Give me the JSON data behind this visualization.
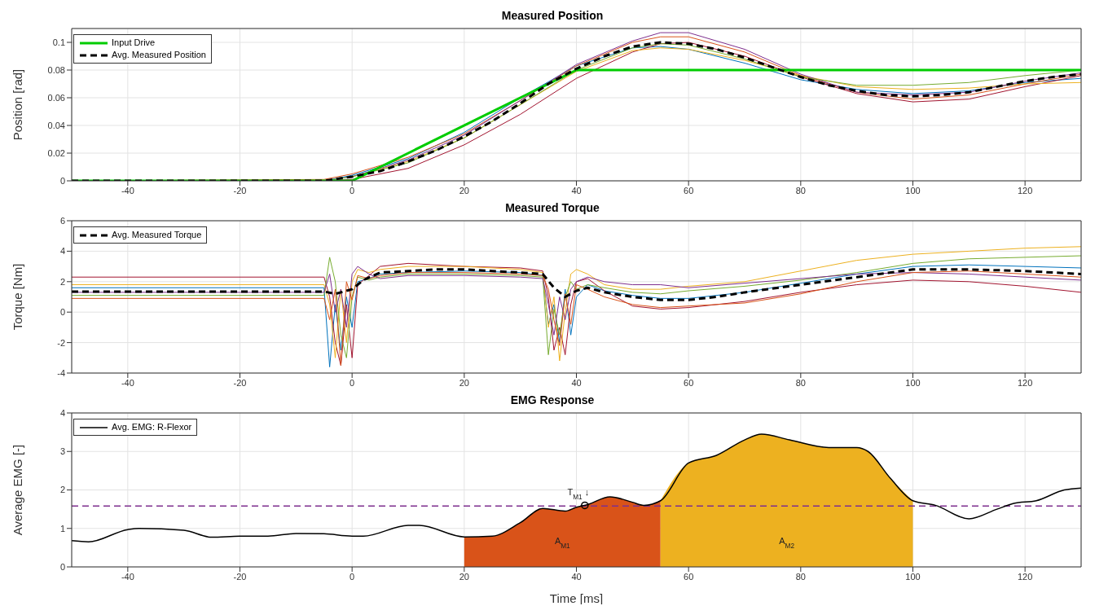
{
  "chart_data": [
    {
      "type": "line",
      "title": "Measured Position",
      "ylabel": "Position [rad]",
      "xlim": [
        -50,
        130
      ],
      "xticks": [
        -40,
        -20,
        0,
        20,
        40,
        60,
        80,
        100,
        120
      ],
      "ylim": [
        0,
        0.11
      ],
      "yticks": [
        0,
        0.02,
        0.04,
        0.06,
        0.08,
        0.1
      ],
      "grid": true,
      "legend": "top left",
      "line_style": "solid",
      "series": [
        {
          "color": "#0072bd",
          "x": [
            -50,
            -5,
            0,
            10,
            20,
            30,
            40,
            50,
            55,
            60,
            70,
            80,
            90,
            100,
            110,
            120,
            130
          ],
          "values": [
            0,
            0,
            0.004,
            0.016,
            0.035,
            0.06,
            0.083,
            0.096,
            0.097,
            0.095,
            0.085,
            0.073,
            0.066,
            0.063,
            0.065,
            0.071,
            0.074
          ]
        },
        {
          "color": "#a2142f",
          "x": [
            -50,
            -5,
            0,
            10,
            20,
            30,
            40,
            50,
            55,
            60,
            70,
            80,
            90,
            100,
            110,
            120,
            130
          ],
          "values": [
            0,
            0,
            0.001,
            0.009,
            0.026,
            0.048,
            0.074,
            0.093,
            0.099,
            0.1,
            0.09,
            0.075,
            0.063,
            0.057,
            0.059,
            0.068,
            0.076
          ]
        },
        {
          "color": "#d95319",
          "x": [
            -50,
            -5,
            0,
            10,
            20,
            30,
            40,
            50,
            55,
            60,
            70,
            80,
            90,
            100,
            110,
            120,
            130
          ],
          "values": [
            0,
            0.001,
            0.005,
            0.017,
            0.034,
            0.058,
            0.083,
            0.1,
            0.104,
            0.104,
            0.093,
            0.076,
            0.064,
            0.059,
            0.062,
            0.07,
            0.077
          ]
        },
        {
          "color": "#edb120",
          "x": [
            0,
            10,
            20,
            30,
            40,
            50,
            55,
            60,
            70,
            80,
            90,
            100,
            110,
            120,
            130
          ],
          "values": [
            0.003,
            0.014,
            0.031,
            0.055,
            0.079,
            0.094,
            0.096,
            0.095,
            0.087,
            0.076,
            0.068,
            0.066,
            0.067,
            0.07,
            0.071
          ]
        },
        {
          "color": "#7e2f8e",
          "x": [
            -50,
            -5,
            0,
            10,
            20,
            30,
            40,
            50,
            55,
            60,
            70,
            80,
            90,
            100,
            110,
            120,
            130
          ],
          "values": [
            0,
            0,
            0.003,
            0.015,
            0.033,
            0.058,
            0.084,
            0.101,
            0.107,
            0.107,
            0.095,
            0.077,
            0.064,
            0.062,
            0.064,
            0.072,
            0.078
          ]
        },
        {
          "color": "#77ac30",
          "x": [
            -50,
            -5,
            0,
            10,
            20,
            30,
            40,
            50,
            55,
            60,
            70,
            80,
            90,
            100,
            110,
            120,
            130
          ],
          "values": [
            0,
            0,
            0.003,
            0.013,
            0.031,
            0.055,
            0.08,
            0.096,
            0.099,
            0.098,
            0.088,
            0.075,
            0.069,
            0.069,
            0.071,
            0.076,
            0.08
          ]
        },
        {
          "name": "Input Drive",
          "color": "#00cc00",
          "x": [
            -50,
            0,
            40,
            130
          ],
          "values": [
            0,
            0,
            0.08,
            0.08
          ]
        },
        {
          "name": "Avg. Measured Position",
          "color": "#000000",
          "line_style": "dashed",
          "x": [
            -50,
            -5,
            0,
            5,
            10,
            15,
            20,
            25,
            30,
            35,
            40,
            45,
            50,
            55,
            60,
            65,
            70,
            75,
            80,
            85,
            90,
            95,
            100,
            105,
            110,
            115,
            120,
            125,
            130
          ],
          "values": [
            0,
            0,
            0.003,
            0.007,
            0.014,
            0.022,
            0.032,
            0.043,
            0.056,
            0.07,
            0.081,
            0.09,
            0.097,
            0.1,
            0.099,
            0.095,
            0.089,
            0.082,
            0.075,
            0.069,
            0.065,
            0.062,
            0.061,
            0.062,
            0.064,
            0.068,
            0.072,
            0.075,
            0.077
          ]
        }
      ]
    },
    {
      "type": "line",
      "title": "Measured Torque",
      "ylabel": "Torque [Nm]",
      "xlim": [
        -50,
        130
      ],
      "xticks": [
        -40,
        -20,
        0,
        20,
        40,
        60,
        80,
        100,
        120
      ],
      "ylim": [
        -4,
        6
      ],
      "yticks": [
        -4,
        -2,
        0,
        2,
        4,
        6
      ],
      "grid": true,
      "legend": "top left",
      "line_style": "solid",
      "series": [
        {
          "color": "#0072bd",
          "x": [
            -50,
            -5,
            -4,
            -3,
            -2,
            -1,
            0,
            1,
            3,
            5,
            10,
            20,
            30,
            34,
            35,
            36,
            37,
            38,
            39,
            40,
            42,
            45,
            50,
            55,
            60,
            70,
            80,
            90,
            100,
            110,
            120,
            130
          ],
          "values": [
            1.6,
            1.6,
            -3.6,
            0.5,
            -2.5,
            1.0,
            -1.0,
            2.0,
            2.2,
            2.5,
            2.6,
            2.7,
            2.6,
            2.4,
            -0.8,
            0.5,
            -2.0,
            1.5,
            -1.5,
            1.0,
            1.8,
            1.4,
            1.1,
            0.9,
            0.9,
            1.3,
            1.9,
            2.5,
            3.0,
            3.1,
            3.0,
            2.9
          ]
        },
        {
          "color": "#a2142f",
          "x": [
            -50,
            -5,
            -4,
            -3,
            -2,
            -1,
            0,
            1,
            3,
            5,
            10,
            20,
            30,
            34,
            35,
            36,
            37,
            38,
            39,
            40,
            42,
            45,
            50,
            55,
            60,
            70,
            80,
            90,
            100,
            110,
            120,
            130
          ],
          "values": [
            2.3,
            2.3,
            1.0,
            -2.0,
            -3.5,
            0.5,
            -3.0,
            1.8,
            2.4,
            3.0,
            3.2,
            3.0,
            2.9,
            2.7,
            1.0,
            -2.5,
            -1.0,
            -2.8,
            0.5,
            2.0,
            2.2,
            1.4,
            0.4,
            0.2,
            0.3,
            0.7,
            1.3,
            1.8,
            2.1,
            2.0,
            1.7,
            1.3
          ]
        },
        {
          "color": "#edb120",
          "x": [
            -50,
            -5,
            -4,
            -3,
            -2,
            -1,
            0,
            1,
            3,
            5,
            10,
            20,
            30,
            34,
            35,
            36,
            37,
            38,
            39,
            40,
            42,
            45,
            50,
            55,
            60,
            70,
            80,
            90,
            100,
            110,
            120,
            130
          ],
          "values": [
            1.8,
            1.8,
            0.5,
            -3.0,
            1.5,
            -2.0,
            2.0,
            2.8,
            2.6,
            2.8,
            3.0,
            3.0,
            2.8,
            2.6,
            -1.0,
            1.0,
            -3.2,
            0.0,
            2.5,
            2.8,
            2.5,
            1.8,
            1.5,
            1.5,
            1.7,
            2.0,
            2.7,
            3.4,
            3.8,
            4.0,
            4.2,
            4.3
          ]
        },
        {
          "color": "#77ac30",
          "x": [
            -50,
            -5,
            -4,
            -3,
            -2,
            -1,
            0,
            1,
            3,
            5,
            10,
            20,
            30,
            34,
            35,
            36,
            37,
            38,
            39,
            40,
            42,
            45,
            50,
            55,
            60,
            70,
            80,
            90,
            100,
            110,
            120,
            130
          ],
          "values": [
            1.1,
            1.1,
            3.6,
            2.0,
            -1.5,
            -3.0,
            1.0,
            2.3,
            2.1,
            2.3,
            2.5,
            2.5,
            2.4,
            2.3,
            -2.8,
            0.2,
            -1.5,
            1.0,
            2.0,
            1.5,
            1.8,
            1.6,
            1.3,
            1.2,
            1.4,
            1.7,
            2.1,
            2.6,
            3.2,
            3.5,
            3.6,
            3.7
          ]
        },
        {
          "color": "#7e2f8e",
          "x": [
            -50,
            -5,
            -4,
            -3,
            -2,
            -1,
            0,
            1,
            3,
            5,
            10,
            20,
            30,
            34,
            35,
            36,
            37,
            38,
            39,
            40,
            42,
            45,
            50,
            55,
            60,
            70,
            80,
            90,
            100,
            110,
            120,
            130
          ],
          "values": [
            1.3,
            1.3,
            2.5,
            0.0,
            1.5,
            -1.0,
            2.5,
            3.0,
            2.5,
            2.2,
            2.4,
            2.4,
            2.3,
            2.2,
            0.5,
            -1.5,
            1.0,
            -0.5,
            1.5,
            2.0,
            2.3,
            2.0,
            1.8,
            1.8,
            1.6,
            1.9,
            2.2,
            2.5,
            2.6,
            2.5,
            2.3,
            2.1
          ]
        },
        {
          "color": "#d95319",
          "x": [
            -50,
            -5,
            -4,
            -3,
            -2,
            -1,
            0,
            1,
            3,
            5,
            10,
            20,
            30,
            34,
            35,
            36,
            37,
            38,
            39,
            40,
            42,
            45,
            50,
            55,
            60,
            70,
            80,
            90,
            100,
            110,
            120,
            130
          ],
          "values": [
            0.9,
            0.9,
            -0.5,
            1.5,
            -3.5,
            2.0,
            0.8,
            2.4,
            2.2,
            2.4,
            2.6,
            2.6,
            2.5,
            2.4,
            1.5,
            -0.5,
            -2.2,
            1.2,
            -0.8,
            1.8,
            1.5,
            1.0,
            0.5,
            0.3,
            0.4,
            0.6,
            1.2,
            2.0,
            2.6,
            2.7,
            2.5,
            2.3
          ]
        },
        {
          "name": "Avg. Measured Torque",
          "color": "#000000",
          "line_style": "dashed",
          "x": [
            -50,
            -5,
            -3,
            0,
            2,
            5,
            10,
            15,
            20,
            25,
            30,
            34,
            36,
            38,
            40,
            42,
            45,
            50,
            55,
            60,
            65,
            70,
            80,
            90,
            100,
            110,
            120,
            130
          ],
          "values": [
            1.35,
            1.35,
            1.2,
            1.5,
            2.1,
            2.6,
            2.7,
            2.8,
            2.8,
            2.7,
            2.6,
            2.5,
            1.6,
            1.0,
            1.4,
            1.6,
            1.3,
            1.0,
            0.8,
            0.8,
            1.0,
            1.3,
            1.8,
            2.3,
            2.8,
            2.8,
            2.7,
            2.5
          ]
        }
      ]
    },
    {
      "type": "area",
      "title": "EMG Response",
      "xlabel": "Time [ms]",
      "ylabel": "Average EMG [-]",
      "xlim": [
        -50,
        130
      ],
      "xticks": [
        -40,
        -20,
        0,
        20,
        40,
        60,
        80,
        100,
        120
      ],
      "ylim": [
        0,
        4
      ],
      "yticks": [
        0,
        1,
        2,
        3,
        4
      ],
      "grid": true,
      "legend": "top left",
      "ref_lines": [
        {
          "axis": "y",
          "value": 1.58,
          "color": "#7e2f8e",
          "line_style": "dashed"
        }
      ],
      "annotations": [
        {
          "text": "T$_{M1}$ ↓",
          "x": 41.5,
          "y": 1.6
        },
        "A$_{M1}$",
        "A$_{M2}$"
      ],
      "series": [
        {
          "type": "area",
          "color": "#d95319",
          "x": [
            20,
            25,
            30,
            34,
            38,
            40,
            42,
            46,
            50,
            52,
            55
          ],
          "values": [
            0.78,
            0.8,
            1.15,
            1.52,
            1.45,
            1.55,
            1.62,
            1.82,
            1.68,
            1.6,
            1.72
          ]
        },
        {
          "type": "area",
          "color": "#edb120",
          "x": [
            55,
            60,
            65,
            70,
            73,
            78,
            85,
            90,
            92,
            96,
            100
          ],
          "values": [
            1.72,
            2.7,
            2.9,
            3.3,
            3.45,
            3.3,
            3.1,
            3.1,
            3.0,
            2.3,
            1.72
          ]
        },
        {
          "type": "line",
          "name": "Avg. EMG: R-Flexor",
          "color": "#000000",
          "line_style": "solid",
          "x": [
            -50,
            -47,
            -40,
            -38,
            -30,
            -25,
            -20,
            -15,
            -10,
            -5,
            0,
            2,
            10,
            12,
            20,
            25,
            30,
            34,
            38,
            40,
            42,
            46,
            50,
            52,
            55,
            60,
            65,
            70,
            73,
            78,
            85,
            90,
            92,
            96,
            100,
            104,
            110,
            115,
            118,
            122,
            127,
            130
          ],
          "values": [
            0.68,
            0.65,
            0.97,
            1.0,
            0.95,
            0.77,
            0.8,
            0.8,
            0.87,
            0.86,
            0.8,
            0.8,
            1.08,
            1.08,
            0.78,
            0.8,
            1.15,
            1.52,
            1.45,
            1.55,
            1.62,
            1.82,
            1.68,
            1.6,
            1.72,
            2.7,
            2.9,
            3.3,
            3.45,
            3.3,
            3.1,
            3.1,
            3.0,
            2.3,
            1.72,
            1.6,
            1.25,
            1.5,
            1.65,
            1.72,
            2.0,
            2.05
          ]
        },
        {
          "type": "scatter",
          "marker": "circle",
          "color": "#000000",
          "x": [
            41.5
          ],
          "values": [
            1.6
          ]
        }
      ]
    }
  ]
}
